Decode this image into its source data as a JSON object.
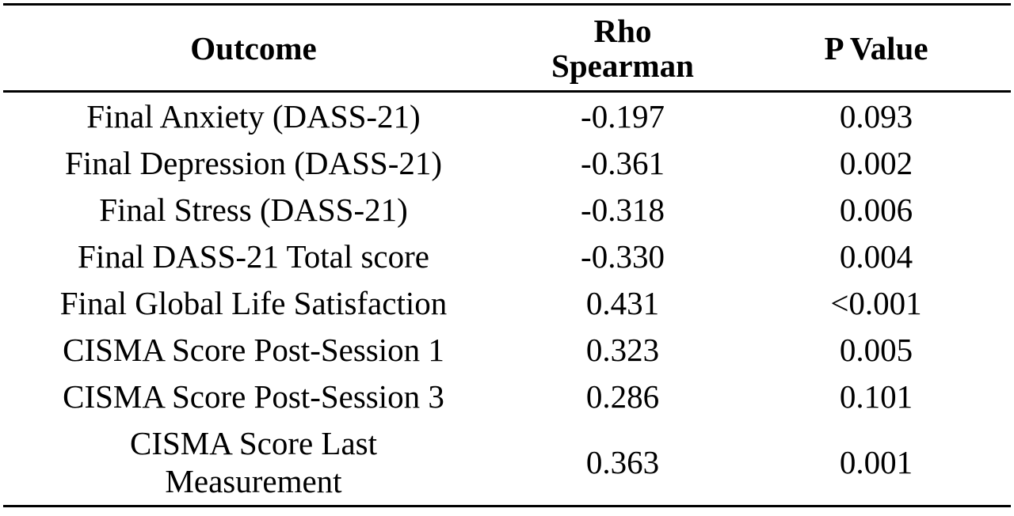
{
  "table": {
    "headers": {
      "outcome": "Outcome",
      "rho_line1": "Rho",
      "rho_line2": "Spearman",
      "p_value": "P Value"
    },
    "rows": [
      {
        "outcome": "Final Anxiety (DASS-21)",
        "rho": "-0.197",
        "p": "0.093"
      },
      {
        "outcome": "Final Depression (DASS-21)",
        "rho": "-0.361",
        "p": "0.002"
      },
      {
        "outcome": "Final Stress (DASS-21)",
        "rho": "-0.318",
        "p": "0.006"
      },
      {
        "outcome": "Final DASS-21 Total score",
        "rho": "-0.330",
        "p": "0.004"
      },
      {
        "outcome": "Final Global Life Satisfaction",
        "rho": "0.431",
        "p": "<0.001"
      },
      {
        "outcome": "CISMA Score Post-Session 1",
        "rho": "0.323",
        "p": "0.005"
      },
      {
        "outcome": "CISMA Score Post-Session 3",
        "rho": "0.286",
        "p": "0.101"
      },
      {
        "outcome_line1": "CISMA Score Last",
        "outcome_line2": "Measurement",
        "rho": "0.363",
        "p": "0.001"
      }
    ]
  }
}
